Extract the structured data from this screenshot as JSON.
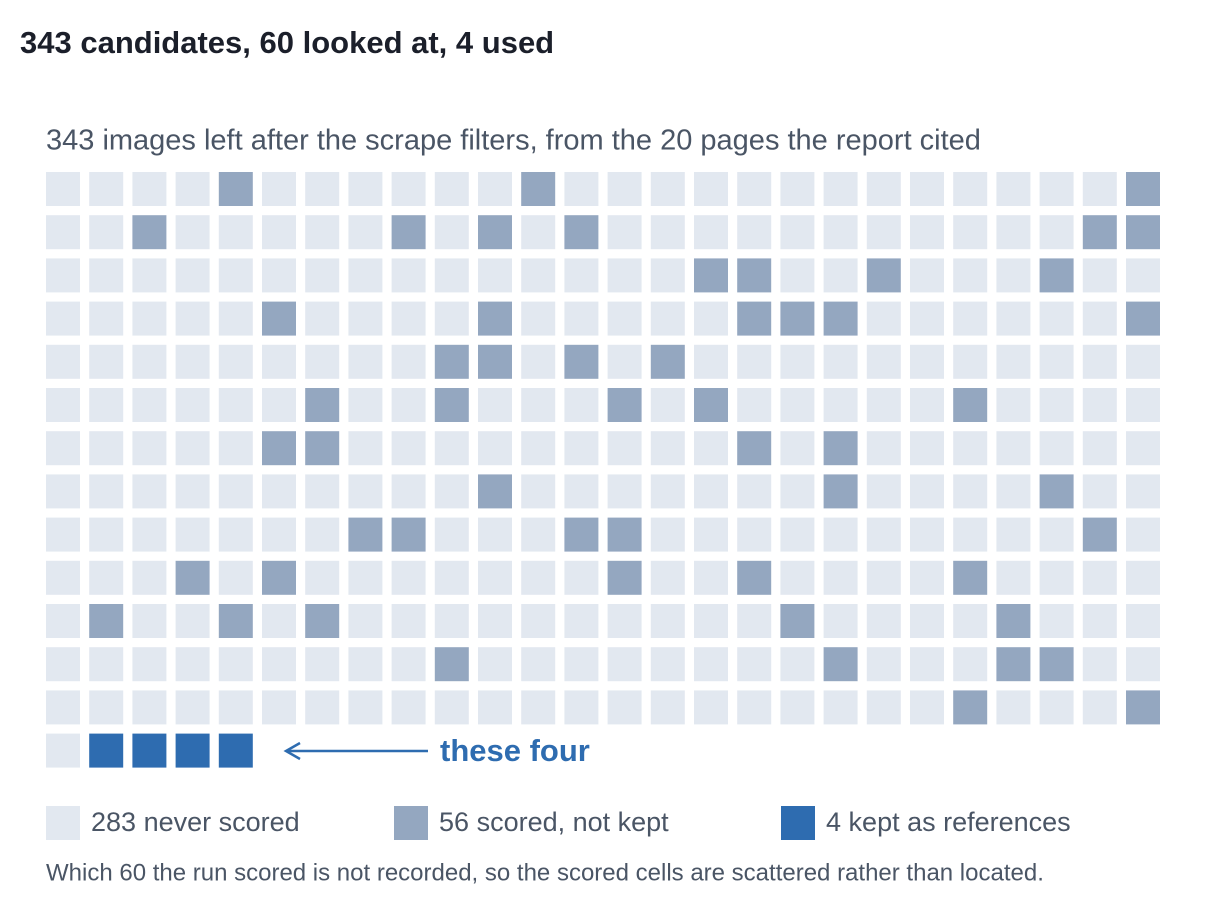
{
  "chart_data": {
    "type": "waffle",
    "title": "343 candidates, 60 looked at, 4 used",
    "subtitle": "343 images left after the scrape filters, from the 20 pages the report cited",
    "series": [
      {
        "name": "never scored",
        "color": "#e2e8f0",
        "value": 283
      },
      {
        "name": "scored, not kept",
        "color": "#94a7c0",
        "value": 56
      },
      {
        "name": "kept as references",
        "color": "#2e6cb0",
        "value": 4
      }
    ],
    "annotation": "these four",
    "note": "Which 60 the run scored is not recorded, so the scored cells are scattered rather than located."
  }
}
